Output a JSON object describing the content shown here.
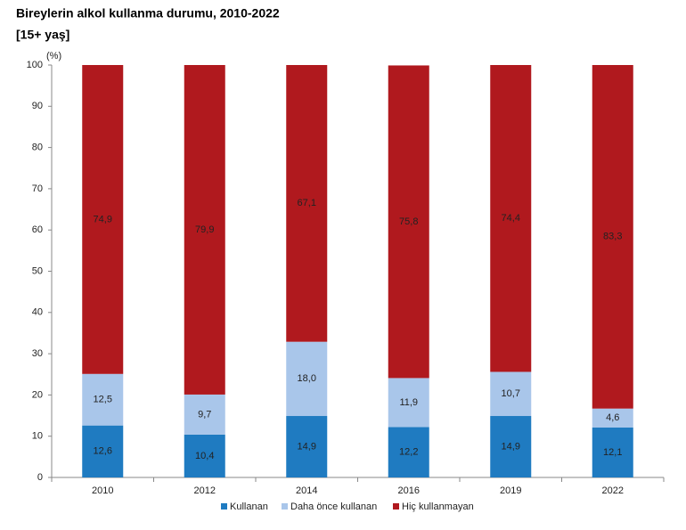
{
  "chart_data": {
    "type": "stacked_bar",
    "title": "Bireylerin alkol kullanma durumu, 2010-2022",
    "subtitle": "[15+ yaş]",
    "y_label": "(%)",
    "categories": [
      "2010",
      "2012",
      "2014",
      "2016",
      "2019",
      "2022"
    ],
    "series": [
      {
        "name": "Kullanan",
        "color": "#1f7bc1",
        "values": [
          12.6,
          10.4,
          14.9,
          12.2,
          14.9,
          12.1
        ],
        "value_labels": [
          "12,6",
          "10,4",
          "14,9",
          "12,2",
          "14,9",
          "12,1"
        ]
      },
      {
        "name": "Daha önce kullanan",
        "color": "#a9c6ea",
        "values": [
          12.5,
          9.7,
          18.0,
          11.9,
          10.7,
          4.6
        ],
        "value_labels": [
          "12,5",
          "9,7",
          "18,0",
          "11,9",
          "10,7",
          "4,6"
        ]
      },
      {
        "name": "Hiç kullanmayan",
        "color": "#b0191e",
        "values": [
          74.9,
          79.9,
          67.1,
          75.8,
          74.4,
          83.3
        ],
        "value_labels": [
          "74,9",
          "79,9",
          "67,1",
          "75,8",
          "74,4",
          "83,3"
        ]
      }
    ],
    "ylim": [
      0,
      100
    ],
    "yticks": [
      0,
      10,
      20,
      30,
      40,
      50,
      60,
      70,
      80,
      90,
      100
    ],
    "legend": "bottom"
  }
}
